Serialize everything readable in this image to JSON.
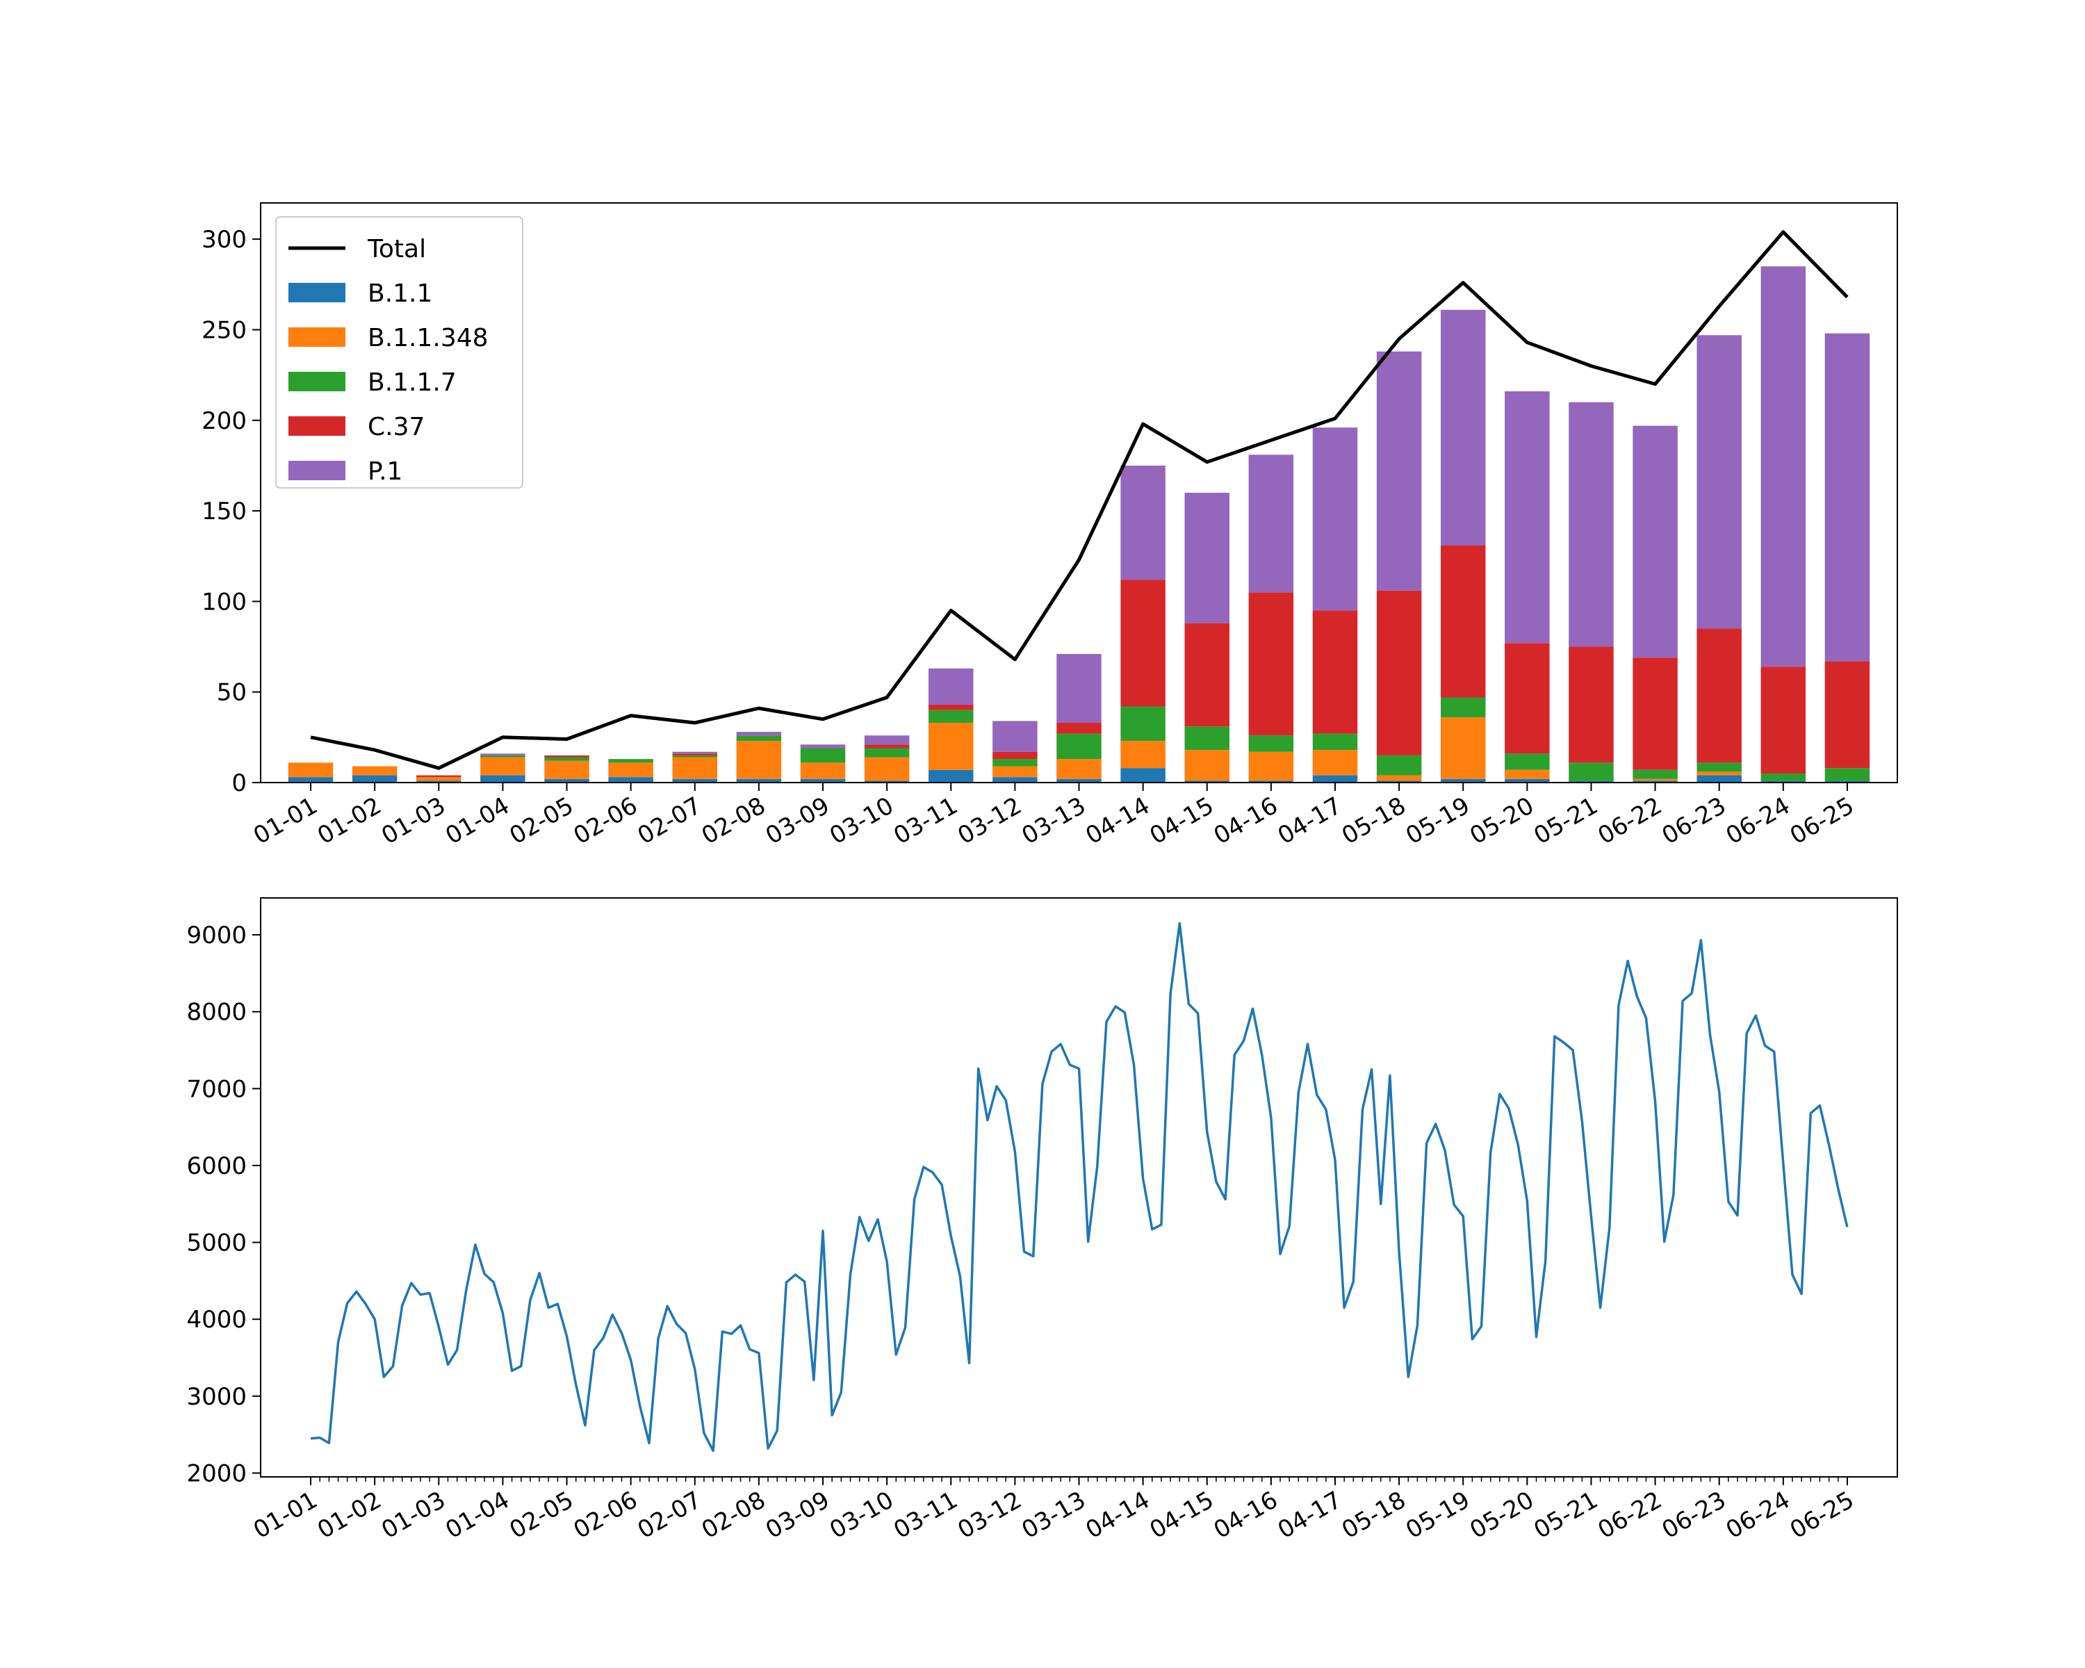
{
  "chart_data": [
    {
      "type": "bar",
      "stacked": true,
      "categories": [
        "01-01",
        "01-02",
        "01-03",
        "01-04",
        "02-05",
        "02-06",
        "02-07",
        "02-08",
        "03-09",
        "03-10",
        "03-11",
        "03-12",
        "03-13",
        "04-14",
        "04-15",
        "04-16",
        "04-17",
        "05-18",
        "05-19",
        "05-20",
        "05-21",
        "06-22",
        "06-23",
        "06-24",
        "06-25"
      ],
      "series": [
        {
          "name": "B.1.1",
          "color": "#1f77b4",
          "values": [
            3,
            4,
            1,
            4,
            2,
            3,
            2,
            2,
            2,
            1,
            7,
            3,
            2,
            8,
            1,
            1,
            4,
            1,
            2,
            2,
            1,
            1,
            4,
            1,
            1
          ]
        },
        {
          "name": "B.1.1.348",
          "color": "#ff7f0e",
          "values": [
            8,
            5,
            2,
            10,
            10,
            8,
            12,
            21,
            9,
            13,
            26,
            6,
            11,
            15,
            17,
            16,
            14,
            3,
            34,
            5,
            0,
            1,
            2,
            0,
            0
          ]
        },
        {
          "name": "B.1.1.7",
          "color": "#2ca02c",
          "values": [
            0,
            0,
            0,
            1,
            2,
            2,
            1,
            3,
            8,
            5,
            7,
            4,
            14,
            19,
            13,
            9,
            9,
            11,
            11,
            9,
            10,
            5,
            5,
            4,
            7
          ]
        },
        {
          "name": "C.37",
          "color": "#d62728",
          "values": [
            0,
            0,
            1,
            0,
            1,
            0,
            1,
            0,
            0,
            2,
            3,
            4,
            6,
            70,
            57,
            79,
            68,
            91,
            84,
            61,
            64,
            62,
            74,
            59,
            59
          ]
        },
        {
          "name": "P.1",
          "color": "#9467bd",
          "values": [
            0,
            0,
            0,
            1,
            0,
            0,
            1,
            2,
            2,
            5,
            20,
            17,
            38,
            63,
            72,
            76,
            101,
            132,
            130,
            139,
            135,
            128,
            162,
            221,
            181
          ]
        }
      ],
      "line": {
        "name": "Total",
        "color": "#000000",
        "values": [
          25,
          18,
          8,
          25,
          24,
          37,
          33,
          41,
          35,
          47,
          95,
          68,
          123,
          198,
          177,
          189,
          201,
          245,
          276,
          243,
          230,
          220,
          263,
          304,
          268
        ]
      },
      "ylim": [
        0,
        320
      ],
      "yticks": [
        0,
        50,
        100,
        150,
        200,
        250,
        300
      ],
      "grid": false,
      "legend": "top-left",
      "title": "",
      "xlabel": "",
      "ylabel": ""
    },
    {
      "type": "line",
      "color": "#1f77b4",
      "x_labels": [
        "01-01",
        "01-02",
        "01-03",
        "01-04",
        "02-05",
        "02-06",
        "02-07",
        "02-08",
        "03-09",
        "03-10",
        "03-11",
        "03-12",
        "03-13",
        "04-14",
        "04-15",
        "04-16",
        "04-17",
        "05-18",
        "05-19",
        "05-20",
        "05-21",
        "06-22",
        "06-23",
        "06-24",
        "06-25"
      ],
      "ylim": [
        1950,
        9480
      ],
      "yticks": [
        2000,
        3000,
        4000,
        5000,
        6000,
        7000,
        8000,
        9000
      ],
      "values": [
        2450,
        2460,
        2390,
        3700,
        4210,
        4360,
        4200,
        4000,
        3250,
        3390,
        4180,
        4470,
        4320,
        4340,
        3900,
        3410,
        3600,
        4380,
        4970,
        4590,
        4480,
        4080,
        3330,
        3390,
        4250,
        4600,
        4150,
        4200,
        3780,
        3150,
        2620,
        3600,
        3760,
        4060,
        3820,
        3470,
        2870,
        2390,
        3750,
        4170,
        3940,
        3820,
        3350,
        2520,
        2290,
        3840,
        3810,
        3920,
        3610,
        3560,
        2320,
        2550,
        4480,
        4580,
        4490,
        3210,
        5150,
        2750,
        3050,
        4580,
        5330,
        5020,
        5300,
        4750,
        3540,
        3890,
        5560,
        5980,
        5910,
        5750,
        5080,
        4560,
        3430,
        7260,
        6590,
        7030,
        6850,
        6180,
        4880,
        4820,
        7060,
        7480,
        7580,
        7310,
        7260,
        5010,
        5990,
        7870,
        8070,
        7990,
        7310,
        5830,
        5170,
        5230,
        8230,
        9150,
        8100,
        7980,
        6440,
        5790,
        5560,
        7440,
        7620,
        8040,
        7440,
        6620,
        4850,
        5210,
        6950,
        7580,
        6920,
        6730,
        6070,
        4150,
        4490,
        6730,
        7250,
        5500,
        7170,
        4870,
        3250,
        3920,
        6290,
        6540,
        6200,
        5490,
        5340,
        3740,
        3910,
        6170,
        6930,
        6740,
        6270,
        5540,
        3770,
        4760,
        7680,
        7600,
        7500,
        6580,
        5330,
        4150,
        5190,
        8080,
        8660,
        8200,
        7920,
        6830,
        5010,
        5620,
        8140,
        8240,
        8930,
        7700,
        6960,
        5530,
        5350,
        7720,
        7950,
        7560,
        7480,
        6030,
        4580,
        4330,
        6680,
        6780,
        6270,
        5700,
        5200
      ],
      "grid": false,
      "title": "",
      "xlabel": "",
      "ylabel": ""
    }
  ]
}
